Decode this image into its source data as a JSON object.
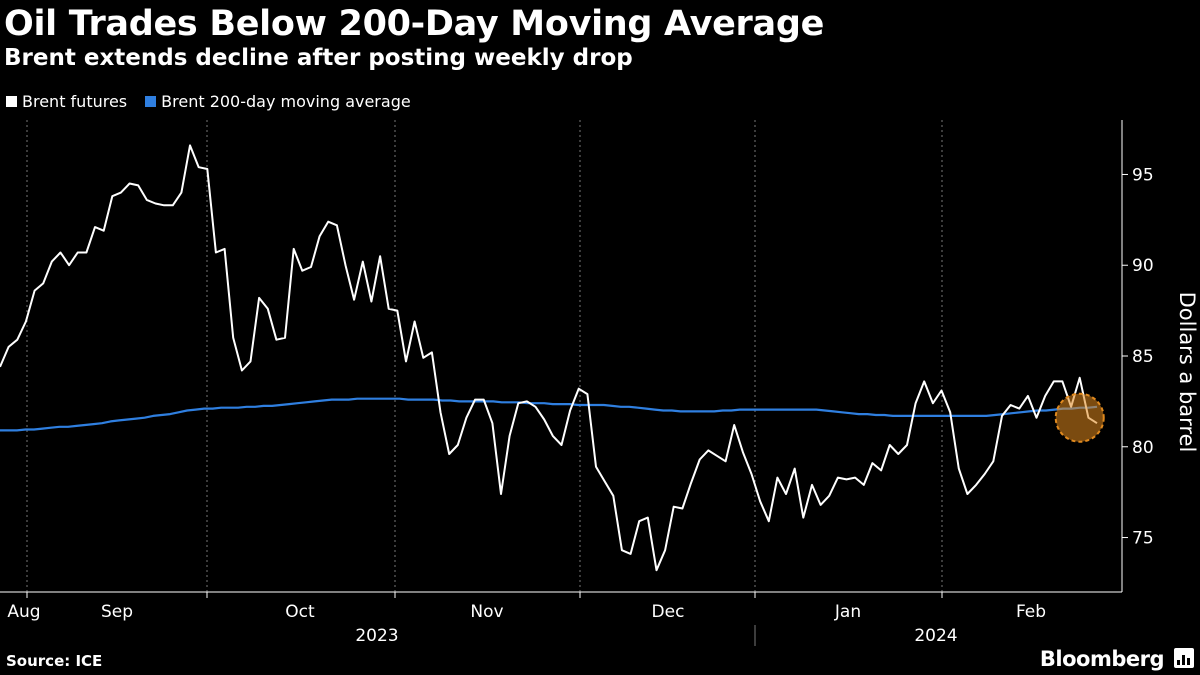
{
  "chart_data": {
    "type": "line",
    "title": "Oil Trades Below 200-Day Moving Average",
    "subtitle": "Brent extends decline after posting weekly drop",
    "ylabel": "Dollars a barrel",
    "ylim": [
      72,
      98
    ],
    "yticks": [
      75,
      80,
      85,
      90,
      95
    ],
    "month_labels": [
      "Aug",
      "Sep",
      "Oct",
      "Nov",
      "Dec",
      "Jan",
      "Feb"
    ],
    "year_labels": [
      "2023",
      "2024"
    ],
    "grid": "vertical dotted at month boundaries",
    "series": [
      {
        "name": "Brent futures",
        "color": "#ffffff",
        "values": [
          84.4,
          85.5,
          85.9,
          86.9,
          88.6,
          89.0,
          90.2,
          90.7,
          90.0,
          90.7,
          90.7,
          92.1,
          91.9,
          93.8,
          94.0,
          94.5,
          94.4,
          93.6,
          93.4,
          93.3,
          93.3,
          94.0,
          96.6,
          95.4,
          95.3,
          90.7,
          90.9,
          86.0,
          84.2,
          84.7,
          88.2,
          87.6,
          85.9,
          86.0,
          90.9,
          89.7,
          89.9,
          91.6,
          92.4,
          92.2,
          90.0,
          88.1,
          90.2,
          88.0,
          90.5,
          87.6,
          87.5,
          84.7,
          86.9,
          84.9,
          85.2,
          81.9,
          79.6,
          80.1,
          81.6,
          82.6,
          82.6,
          81.3,
          77.4,
          80.6,
          82.4,
          82.5,
          82.2,
          81.5,
          80.6,
          80.1,
          82.0,
          83.2,
          82.9,
          78.9,
          78.1,
          77.3,
          74.3,
          74.1,
          75.9,
          76.1,
          73.2,
          74.3,
          76.7,
          76.6,
          78.0,
          79.3,
          79.8,
          79.5,
          79.2,
          81.2,
          79.7,
          78.5,
          77.0,
          75.9,
          78.3,
          77.4,
          78.8,
          76.1,
          77.9,
          76.8,
          77.3,
          78.3,
          78.2,
          78.3,
          77.9,
          79.1,
          78.7,
          80.1,
          79.6,
          80.1,
          82.4,
          83.6,
          82.4,
          83.1,
          81.9,
          78.8,
          77.4,
          77.9,
          78.5,
          79.2,
          81.7,
          82.3,
          82.1,
          82.8,
          81.6,
          82.8,
          83.6,
          83.6,
          82.2,
          83.8,
          81.6,
          81.3
        ],
        "last": 81.3
      },
      {
        "name": "Brent 200-day moving average",
        "color": "#2f7fe0",
        "values": [
          80.9,
          80.9,
          80.9,
          80.95,
          80.95,
          81.0,
          81.05,
          81.1,
          81.1,
          81.15,
          81.2,
          81.25,
          81.3,
          81.4,
          81.45,
          81.5,
          81.55,
          81.6,
          81.7,
          81.75,
          81.8,
          81.9,
          82.0,
          82.05,
          82.1,
          82.1,
          82.15,
          82.15,
          82.15,
          82.2,
          82.2,
          82.25,
          82.25,
          82.3,
          82.35,
          82.4,
          82.45,
          82.5,
          82.55,
          82.6,
          82.6,
          82.6,
          82.65,
          82.65,
          82.65,
          82.65,
          82.65,
          82.65,
          82.6,
          82.6,
          82.6,
          82.6,
          82.55,
          82.55,
          82.5,
          82.5,
          82.5,
          82.5,
          82.5,
          82.45,
          82.45,
          82.45,
          82.4,
          82.4,
          82.4,
          82.35,
          82.35,
          82.35,
          82.3,
          82.3,
          82.3,
          82.3,
          82.25,
          82.2,
          82.2,
          82.15,
          82.1,
          82.05,
          82.0,
          82.0,
          81.95,
          81.95,
          81.95,
          81.95,
          81.95,
          82.0,
          82.0,
          82.05,
          82.05,
          82.05,
          82.05,
          82.05,
          82.05,
          82.05,
          82.05,
          82.05,
          82.05,
          82.0,
          81.95,
          81.9,
          81.85,
          81.8,
          81.8,
          81.75,
          81.75,
          81.7,
          81.7,
          81.7,
          81.7,
          81.7,
          81.7,
          81.7,
          81.7,
          81.7,
          81.7,
          81.7,
          81.7,
          81.75,
          81.8,
          81.85,
          81.9,
          81.95,
          82.0,
          82.0,
          82.05,
          82.1,
          82.1,
          82.15,
          82.15,
          82.2
        ]
      }
    ],
    "highlight": "latest Brent futures value below the 200-day moving average",
    "source": "Source: ICE",
    "brand": "Bloomberg"
  }
}
